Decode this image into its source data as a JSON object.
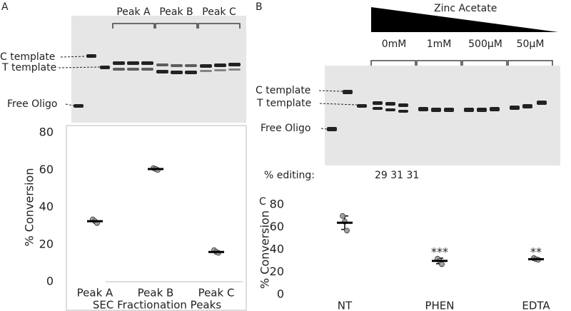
{
  "panels": {
    "a": "A",
    "b": "B",
    "c": "C"
  },
  "gel_a": {
    "peaks": [
      "Peak A",
      "Peak B",
      "Peak C"
    ],
    "bands": [
      "C template",
      "T template",
      "Free Oligo"
    ]
  },
  "gel_b": {
    "reagent": "Zinc Acetate",
    "concentrations": [
      "0mM",
      "1mM",
      "500μM",
      "50μM"
    ],
    "bands": [
      "C template",
      "T template",
      "Free Oligo"
    ],
    "editing_label": "% editing:",
    "editing_values": "29 31 31"
  },
  "chart_data": [
    {
      "type": "strip",
      "ylabel": "% Conversion",
      "xlabel": "SEC Fractionation Peaks",
      "categories": [
        "Peak A",
        "Peak B",
        "Peak C"
      ],
      "replicates": [
        [
          33.5,
          32.5,
          31.5
        ],
        [
          61,
          60.5,
          60
        ],
        [
          17,
          16,
          15.5
        ]
      ],
      "means": [
        32.5,
        60.5,
        16
      ],
      "ylim": [
        0,
        80
      ],
      "yticks": [
        0,
        20,
        40,
        60,
        80
      ]
    },
    {
      "type": "strip",
      "ylabel": "% Conversion",
      "categories": [
        "NT",
        "PHEN",
        "EDTA"
      ],
      "replicates": [
        [
          70,
          65,
          57
        ],
        [
          32,
          30,
          27
        ],
        [
          32.5,
          31.5,
          31
        ]
      ],
      "means": [
        64,
        30,
        31.5
      ],
      "errors": [
        6,
        2.5,
        1
      ],
      "annotations": [
        null,
        "***",
        "**"
      ],
      "ylim": [
        0,
        80
      ],
      "yticks": [
        0,
        20,
        40,
        60,
        80
      ]
    }
  ]
}
